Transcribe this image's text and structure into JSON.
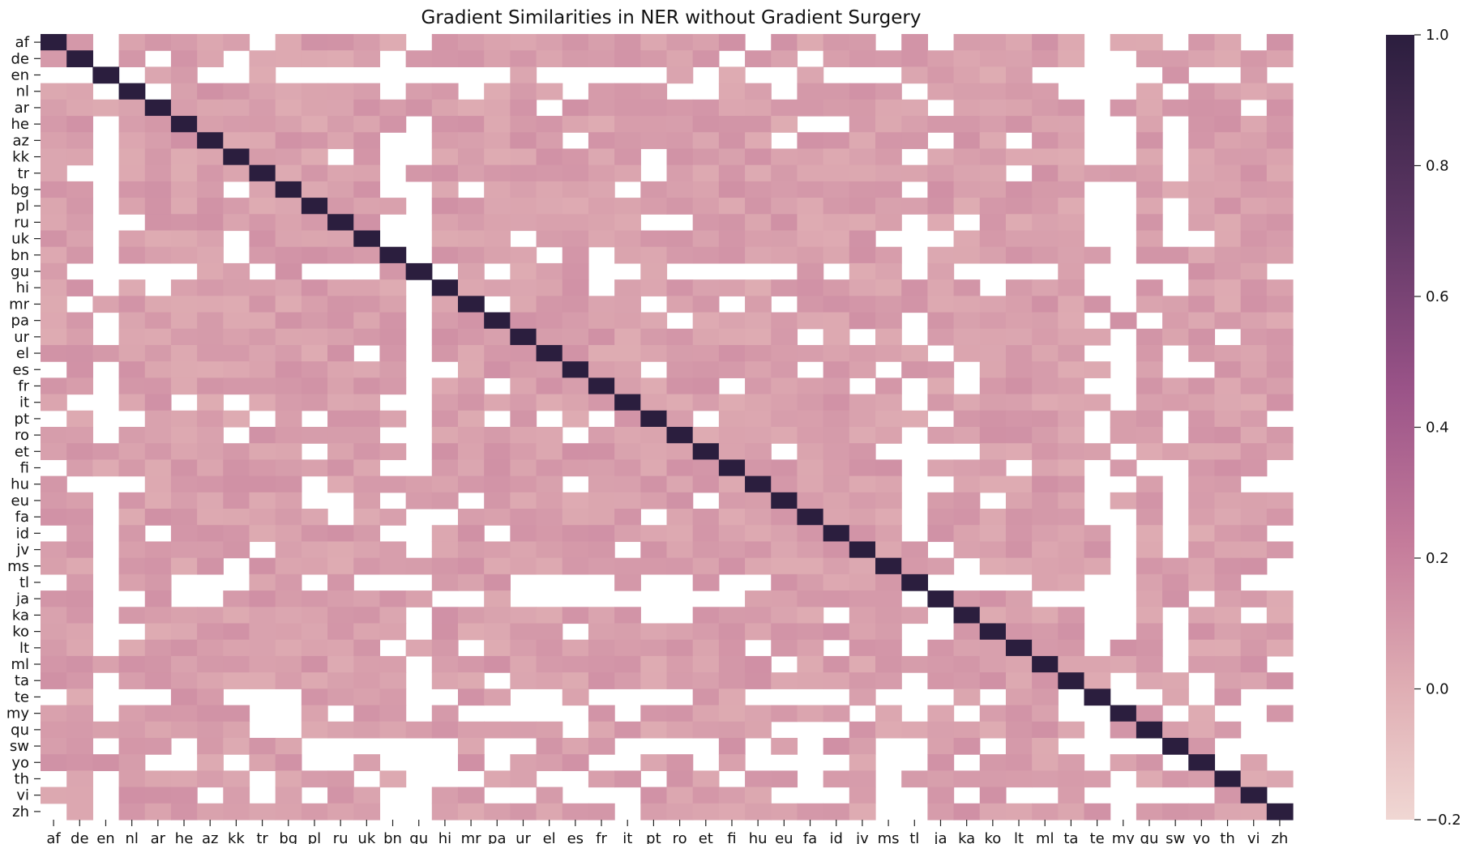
{
  "chart_data": {
    "type": "heatmap",
    "title": "Gradient Similarities in NER without Gradient Surgery",
    "languages": [
      "af",
      "de",
      "en",
      "nl",
      "ar",
      "he",
      "az",
      "kk",
      "tr",
      "bg",
      "pl",
      "ru",
      "uk",
      "bn",
      "gu",
      "hi",
      "mr",
      "pa",
      "ur",
      "el",
      "es",
      "fr",
      "it",
      "pt",
      "ro",
      "et",
      "fi",
      "hu",
      "eu",
      "fa",
      "id",
      "jv",
      "ms",
      "tl",
      "ja",
      "ka",
      "ko",
      "lt",
      "ml",
      "ta",
      "te",
      "my",
      "qu",
      "sw",
      "yo",
      "th",
      "vi",
      "zh"
    ],
    "diagonal_value": 1.0,
    "typical_offdiagonal_value": 0.05,
    "missing_color": "#ffffff",
    "colorbar": {
      "min": -0.2,
      "max": 1.0,
      "ticks": [
        "1.0",
        "0.8",
        "0.6",
        "0.4",
        "0.2",
        "0.0",
        "−0.2"
      ],
      "low_color": "#f0d7d3",
      "mid_color": "#c37b9a",
      "high_color": "#2b1e3e"
    },
    "note_missing_cells": "white cells have no plotted value"
  }
}
